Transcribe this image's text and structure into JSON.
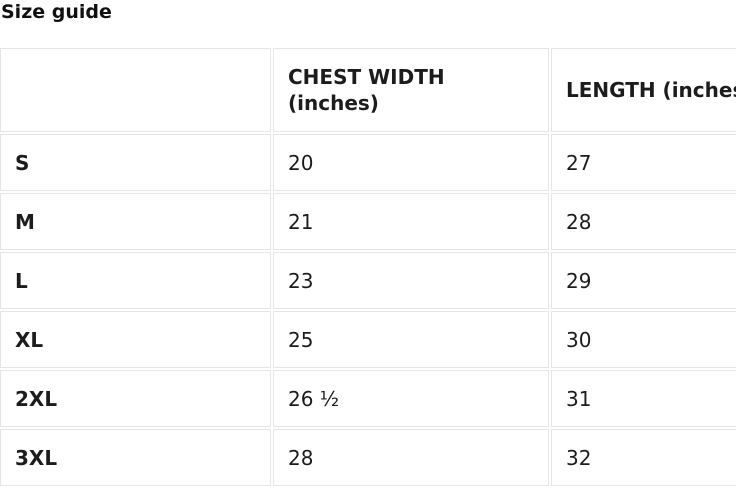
{
  "page": {
    "title": "Size guide"
  },
  "size_table": {
    "columns": {
      "size": "",
      "chest": "CHEST WIDTH (inches)",
      "length": "LENGTH (inches)"
    },
    "rows": [
      {
        "size": "S",
        "chest": "20",
        "length": "27"
      },
      {
        "size": "M",
        "chest": "21",
        "length": "28"
      },
      {
        "size": "L",
        "chest": "23",
        "length": "29"
      },
      {
        "size": "XL",
        "chest": "25",
        "length": "30"
      },
      {
        "size": "2XL",
        "chest": "26 ½",
        "length": "31"
      },
      {
        "size": "3XL",
        "chest": "28",
        "length": "32"
      }
    ]
  },
  "colors": {
    "background": "#ffffff",
    "text": "#1a1a1a",
    "heading_text": "#111111",
    "table_border": "#e5e5e5"
  }
}
